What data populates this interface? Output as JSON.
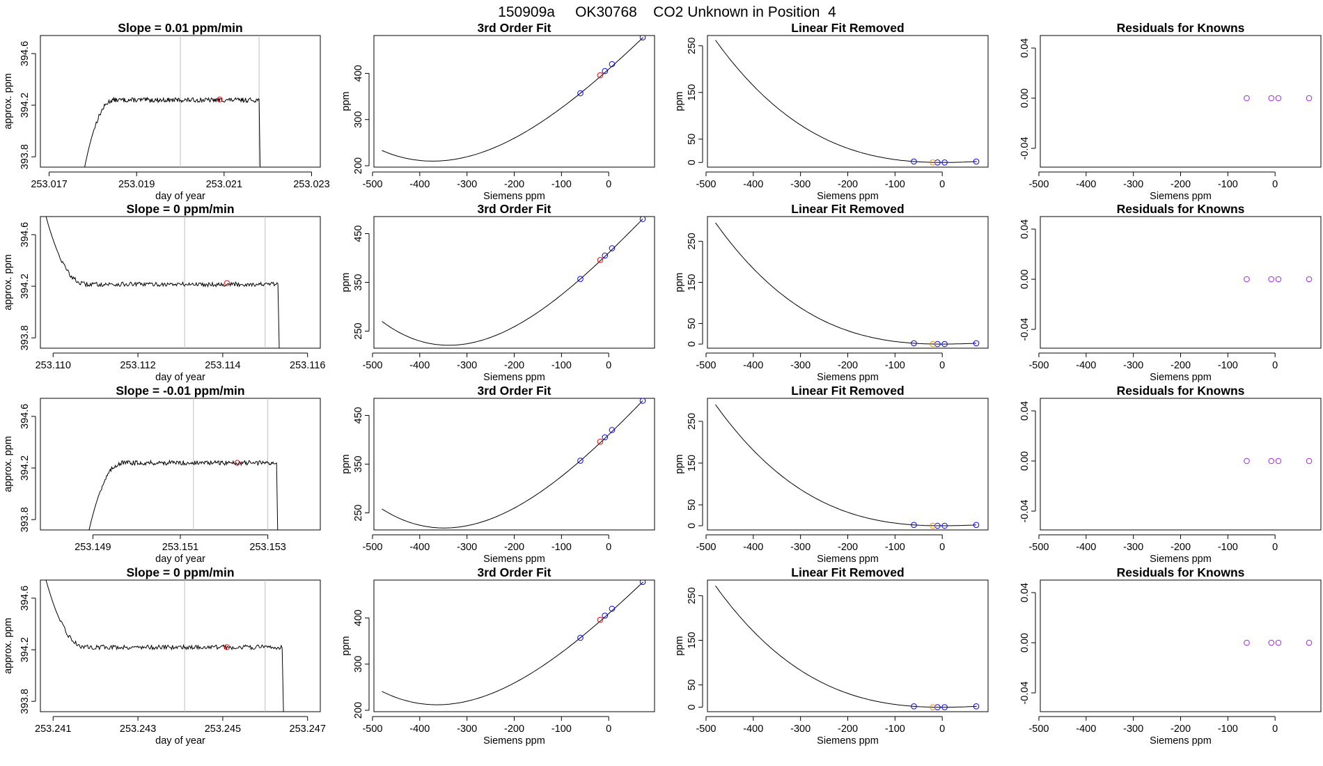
{
  "figure_title": "150909a     OK30768    CO2 Unknown in Position  4",
  "colors": {
    "trace": "#000000",
    "marker": "#ff0000",
    "known": "#0000ff",
    "unknown": "#ff8c00",
    "residual": "#a020f0",
    "guide": "#bebebe"
  },
  "chart_data": [
    {
      "type": "line",
      "title": "Slope =  0.01  ppm/min",
      "xlabel": "day of year",
      "ylabel": "approx. ppm",
      "xlim": [
        253.0168,
        253.0232
      ],
      "ylim": [
        393.72,
        394.74
      ],
      "xticks": [
        253.017,
        253.019,
        253.021,
        253.023
      ],
      "xtick_labels": [
        "253.017",
        "253.019",
        "253.021",
        "253.023"
      ],
      "yticks": [
        393.8,
        394.2,
        394.6
      ],
      "ytick_labels": [
        "393.8",
        "394.2",
        "394.6"
      ],
      "trace": {
        "x_start": 253.0178,
        "x_rise_end": 253.0185,
        "x_end": 253.0218,
        "y_start": 393.7,
        "plateau": 394.24,
        "y_drop": 393.7
      },
      "vlines": [
        253.02,
        253.0218
      ],
      "marker": {
        "x": 253.0209,
        "y": 394.245
      }
    },
    {
      "type": "line",
      "title": "Slope =  0  ppm/min",
      "xlabel": "day of year",
      "ylabel": "approx. ppm",
      "xlim": [
        253.1097,
        253.1163
      ],
      "ylim": [
        393.72,
        394.74
      ],
      "xticks": [
        253.11,
        253.112,
        253.114,
        253.116
      ],
      "xtick_labels": [
        "253.110",
        "253.112",
        "253.114",
        "253.116"
      ],
      "yticks": [
        393.8,
        394.2,
        394.6
      ],
      "ytick_labels": [
        "393.8",
        "394.2",
        "394.6"
      ],
      "trace": {
        "x_start": 253.1098,
        "x_rise_end": 253.1108,
        "x_end": 253.1153,
        "y_start": 394.78,
        "plateau": 394.215,
        "y_drop": 393.7
      },
      "vlines": [
        253.1131,
        253.115
      ],
      "marker": {
        "x": 253.1141,
        "y": 394.225
      }
    },
    {
      "type": "line",
      "title": "Slope =  -0.01  ppm/min",
      "xlabel": "day of year",
      "ylabel": "approx. ppm",
      "xlim": [
        253.1478,
        253.1542
      ],
      "ylim": [
        393.72,
        394.74
      ],
      "xticks": [
        253.149,
        253.151,
        253.153
      ],
      "xtick_labels": [
        "253.149",
        "253.151",
        "253.153"
      ],
      "yticks": [
        393.8,
        394.2,
        394.6
      ],
      "ytick_labels": [
        "393.8",
        "394.2",
        "394.6"
      ],
      "trace": {
        "x_start": 253.1489,
        "x_rise_end": 253.1497,
        "x_end": 253.1532,
        "y_start": 393.7,
        "plateau": 394.24,
        "y_drop": 393.7
      },
      "vlines": [
        253.1513,
        253.153
      ],
      "marker": {
        "x": 253.1523,
        "y": 394.24
      }
    },
    {
      "type": "line",
      "title": "Slope =  0  ppm/min",
      "xlabel": "day of year",
      "ylabel": "approx. ppm",
      "xlim": [
        253.2407,
        253.2473
      ],
      "ylim": [
        393.72,
        394.74
      ],
      "xticks": [
        253.241,
        253.243,
        253.245,
        253.247
      ],
      "xtick_labels": [
        "253.241",
        "253.243",
        "253.245",
        "253.247"
      ],
      "yticks": [
        393.8,
        394.2,
        394.6
      ],
      "ytick_labels": [
        "393.8",
        "394.2",
        "394.6"
      ],
      "trace": {
        "x_start": 253.2408,
        "x_rise_end": 253.2418,
        "x_end": 253.2464,
        "y_start": 394.78,
        "plateau": 394.22,
        "y_drop": 393.7
      },
      "vlines": [
        253.2441,
        253.246
      ],
      "marker": {
        "x": 253.2451,
        "y": 394.22
      }
    },
    {
      "type": "scatter",
      "title": "3rd Order Fit",
      "xlabel": "Siemens ppm",
      "ylabel": "ppm",
      "xlim": [
        -497,
        97
      ],
      "ylim": [
        197,
        482
      ],
      "xticks": [
        -500,
        -400,
        -300,
        -200,
        -100,
        0
      ],
      "xtick_labels": [
        "-500",
        "-400",
        "-300",
        "-200",
        "-100",
        "0"
      ],
      "yticks": [
        200,
        300,
        400
      ],
      "ytick_labels": [
        "200",
        "300",
        "400"
      ],
      "curve": [
        [
          -480,
          233
        ],
        [
          -372,
          210
        ],
        [
          -60,
          357
        ],
        [
          73,
          478
        ]
      ],
      "knowns": [
        [
          -60,
          357
        ],
        [
          -8,
          405
        ],
        [
          7,
          420
        ],
        [
          72,
          478
        ]
      ],
      "unknowns": [
        [
          -18,
          396
        ]
      ]
    },
    {
      "type": "scatter",
      "title": "3rd Order Fit",
      "xlabel": "Siemens ppm",
      "ylabel": "ppm",
      "xlim": [
        -497,
        97
      ],
      "ylim": [
        215,
        485
      ],
      "xticks": [
        -500,
        -400,
        -300,
        -200,
        -100,
        0
      ],
      "xtick_labels": [
        "-500",
        "-400",
        "-300",
        "-200",
        "-100",
        "0"
      ],
      "yticks": [
        250,
        350,
        450
      ],
      "ytick_labels": [
        "250",
        "350",
        "450"
      ],
      "curve": [
        [
          -480,
          270
        ],
        [
          -340,
          221
        ],
        [
          -60,
          357
        ],
        [
          72,
          480
        ]
      ],
      "knowns": [
        [
          -60,
          357
        ],
        [
          -8,
          405
        ],
        [
          7,
          420
        ],
        [
          72,
          480
        ]
      ],
      "unknowns": [
        [
          -18,
          396
        ]
      ]
    },
    {
      "type": "scatter",
      "title": "3rd Order Fit",
      "xlabel": "Siemens ppm",
      "ylabel": "ppm",
      "xlim": [
        -497,
        97
      ],
      "ylim": [
        215,
        485
      ],
      "xticks": [
        -500,
        -400,
        -300,
        -200,
        -100,
        0
      ],
      "xtick_labels": [
        "-500",
        "-400",
        "-300",
        "-200",
        "-100",
        "0"
      ],
      "yticks": [
        250,
        350,
        450
      ],
      "ytick_labels": [
        "250",
        "350",
        "450"
      ],
      "curve": [
        [
          -480,
          258
        ],
        [
          -350,
          219
        ],
        [
          -60,
          357
        ],
        [
          72,
          480
        ]
      ],
      "knowns": [
        [
          -60,
          357
        ],
        [
          -8,
          405
        ],
        [
          7,
          420
        ],
        [
          72,
          480
        ]
      ],
      "unknowns": [
        [
          -18,
          396
        ]
      ]
    },
    {
      "type": "scatter",
      "title": "3rd Order Fit",
      "xlabel": "Siemens ppm",
      "ylabel": "ppm",
      "xlim": [
        -497,
        97
      ],
      "ylim": [
        197,
        482
      ],
      "xticks": [
        -500,
        -400,
        -300,
        -200,
        -100,
        0
      ],
      "xtick_labels": [
        "-500",
        "-400",
        "-300",
        "-200",
        "-100",
        "0"
      ],
      "yticks": [
        200,
        300,
        400
      ],
      "ytick_labels": [
        "200",
        "300",
        "400"
      ],
      "curve": [
        [
          -480,
          241
        ],
        [
          -362,
          212
        ],
        [
          -60,
          357
        ],
        [
          73,
          478
        ]
      ],
      "knowns": [
        [
          -60,
          357
        ],
        [
          -8,
          405
        ],
        [
          7,
          420
        ],
        [
          72,
          478
        ]
      ],
      "unknowns": [
        [
          -18,
          396
        ]
      ]
    },
    {
      "type": "scatter",
      "title": "Linear Fit Removed",
      "xlabel": "Siemens ppm",
      "ylabel": "ppm",
      "xlim": [
        -497,
        97
      ],
      "ylim": [
        -10,
        272
      ],
      "xticks": [
        -500,
        -400,
        -300,
        -200,
        -100,
        0
      ],
      "xtick_labels": [
        "-500",
        "-400",
        "-300",
        "-200",
        "-100",
        "0"
      ],
      "yticks": [
        0,
        50,
        150,
        250
      ],
      "ytick_labels": [
        "0",
        "50",
        "150",
        "250"
      ],
      "curve": [
        [
          -480,
          262
        ],
        [
          -60,
          2
        ],
        [
          -10,
          0
        ],
        [
          73,
          2
        ]
      ],
      "knowns": [
        [
          -60,
          2
        ],
        [
          -10,
          0
        ],
        [
          5,
          0
        ],
        [
          72,
          2
        ]
      ],
      "unknowns": [
        [
          -20,
          0
        ]
      ]
    },
    {
      "type": "scatter",
      "title": "Linear Fit Removed",
      "xlabel": "Siemens ppm",
      "ylabel": "ppm",
      "xlim": [
        -497,
        97
      ],
      "ylim": [
        -10,
        310
      ],
      "xticks": [
        -500,
        -400,
        -300,
        -200,
        -100,
        0
      ],
      "xtick_labels": [
        "-500",
        "-400",
        "-300",
        "-200",
        "-100",
        "0"
      ],
      "yticks": [
        0,
        50,
        150,
        250
      ],
      "ytick_labels": [
        "0",
        "50",
        "150",
        "250"
      ],
      "curve": [
        [
          -480,
          295
        ],
        [
          -60,
          2
        ],
        [
          -10,
          0
        ],
        [
          72,
          2
        ]
      ],
      "knowns": [
        [
          -60,
          2
        ],
        [
          -10,
          0
        ],
        [
          5,
          0
        ],
        [
          72,
          2
        ]
      ],
      "unknowns": [
        [
          -20,
          0
        ]
      ]
    },
    {
      "type": "scatter",
      "title": "Linear Fit Removed",
      "xlabel": "Siemens ppm",
      "ylabel": "ppm",
      "xlim": [
        -497,
        97
      ],
      "ylim": [
        -10,
        305
      ],
      "xticks": [
        -500,
        -400,
        -300,
        -200,
        -100,
        0
      ],
      "xtick_labels": [
        "-500",
        "-400",
        "-300",
        "-200",
        "-100",
        "0"
      ],
      "yticks": [
        0,
        50,
        150,
        250
      ],
      "ytick_labels": [
        "0",
        "50",
        "150",
        "250"
      ],
      "curve": [
        [
          -480,
          290
        ],
        [
          -60,
          2
        ],
        [
          -10,
          0
        ],
        [
          72,
          2
        ]
      ],
      "knowns": [
        [
          -60,
          2
        ],
        [
          -10,
          0
        ],
        [
          5,
          0
        ],
        [
          72,
          2
        ]
      ],
      "unknowns": [
        [
          -20,
          0
        ]
      ]
    },
    {
      "type": "scatter",
      "title": "Linear Fit Removed",
      "xlabel": "Siemens ppm",
      "ylabel": "ppm",
      "xlim": [
        -497,
        97
      ],
      "ylim": [
        -10,
        285
      ],
      "xticks": [
        -500,
        -400,
        -300,
        -200,
        -100,
        0
      ],
      "xtick_labels": [
        "-500",
        "-400",
        "-300",
        "-200",
        "-100",
        "0"
      ],
      "yticks": [
        0,
        50,
        150,
        250
      ],
      "ytick_labels": [
        "0",
        "50",
        "150",
        "250"
      ],
      "curve": [
        [
          -480,
          272
        ],
        [
          -60,
          2
        ],
        [
          -10,
          0
        ],
        [
          73,
          2
        ]
      ],
      "knowns": [
        [
          -60,
          2
        ],
        [
          -10,
          0
        ],
        [
          5,
          0
        ],
        [
          72,
          2
        ]
      ],
      "unknowns": [
        [
          -20,
          0
        ]
      ]
    },
    {
      "type": "scatter",
      "title": "Residuals for Knowns",
      "xlabel": "Siemens ppm",
      "ylabel": "",
      "xlim": [
        -497,
        97
      ],
      "ylim": [
        -0.055,
        0.05
      ],
      "xticks": [
        -500,
        -400,
        -300,
        -200,
        -100,
        0
      ],
      "xtick_labels": [
        "-500",
        "-400",
        "-300",
        "-200",
        "-100",
        "0"
      ],
      "yticks": [
        -0.04,
        0.0,
        0.04
      ],
      "ytick_labels": [
        "-0.04",
        "0.00",
        "0.04"
      ],
      "points": [
        [
          -60,
          0
        ],
        [
          -8,
          0
        ],
        [
          7,
          0
        ],
        [
          72,
          0
        ]
      ]
    },
    {
      "type": "scatter",
      "title": "Residuals for Knowns",
      "xlabel": "Siemens ppm",
      "ylabel": "",
      "xlim": [
        -497,
        97
      ],
      "ylim": [
        -0.055,
        0.05
      ],
      "xticks": [
        -500,
        -400,
        -300,
        -200,
        -100,
        0
      ],
      "xtick_labels": [
        "-500",
        "-400",
        "-300",
        "-200",
        "-100",
        "0"
      ],
      "yticks": [
        -0.04,
        0.0,
        0.04
      ],
      "ytick_labels": [
        "-0.04",
        "0.00",
        "0.04"
      ],
      "points": [
        [
          -60,
          0
        ],
        [
          -8,
          0
        ],
        [
          7,
          0
        ],
        [
          72,
          0
        ]
      ]
    },
    {
      "type": "scatter",
      "title": "Residuals for Knowns",
      "xlabel": "Siemens ppm",
      "ylabel": "",
      "xlim": [
        -497,
        97
      ],
      "ylim": [
        -0.055,
        0.05
      ],
      "xticks": [
        -500,
        -400,
        -300,
        -200,
        -100,
        0
      ],
      "xtick_labels": [
        "-500",
        "-400",
        "-300",
        "-200",
        "-100",
        "0"
      ],
      "yticks": [
        -0.04,
        0.0,
        0.04
      ],
      "ytick_labels": [
        "-0.04",
        "0.00",
        "0.04"
      ],
      "points": [
        [
          -60,
          0
        ],
        [
          -8,
          0
        ],
        [
          7,
          0
        ],
        [
          72,
          0
        ]
      ]
    },
    {
      "type": "scatter",
      "title": "Residuals for Knowns",
      "xlabel": "Siemens ppm",
      "ylabel": "",
      "xlim": [
        -497,
        97
      ],
      "ylim": [
        -0.055,
        0.05
      ],
      "xticks": [
        -500,
        -400,
        -300,
        -200,
        -100,
        0
      ],
      "xtick_labels": [
        "-500",
        "-400",
        "-300",
        "-200",
        "-100",
        "0"
      ],
      "yticks": [
        -0.04,
        0.0,
        0.04
      ],
      "ytick_labels": [
        "-0.04",
        "0.00",
        "0.04"
      ],
      "points": [
        [
          -60,
          0
        ],
        [
          -8,
          0
        ],
        [
          7,
          0
        ],
        [
          72,
          0
        ]
      ]
    }
  ]
}
